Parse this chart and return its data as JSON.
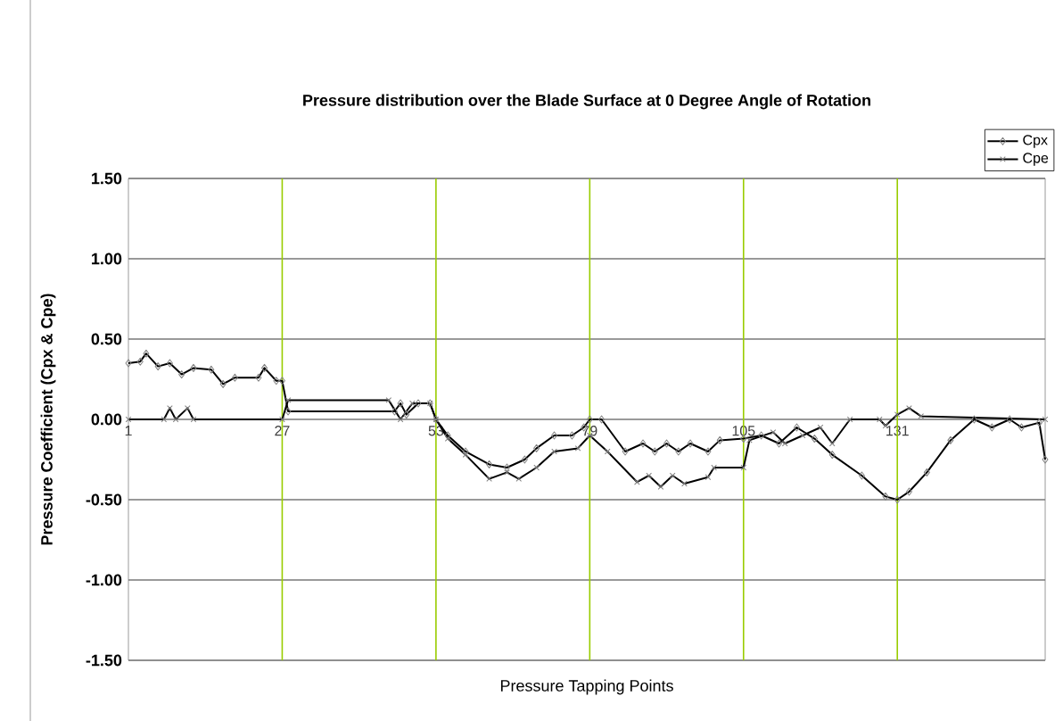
{
  "chart_data": {
    "type": "line",
    "title": "Pressure distribution over the Blade Surface at 0 Degree Angle of Rotation",
    "xlabel": "Pressure Tapping Points",
    "ylabel": "Pressure Coefficient (Cpx & Cpe)",
    "xlim": [
      1,
      156
    ],
    "xticks": [
      1,
      27,
      53,
      79,
      105,
      131
    ],
    "ylim": [
      -1.5,
      1.5
    ],
    "yticks": [
      {
        "value": -1.5,
        "label": "-1.50"
      },
      {
        "value": -1.0,
        "label": "-1.00"
      },
      {
        "value": -0.5,
        "label": "-0.50"
      },
      {
        "value": 0,
        "label": "0.00"
      },
      {
        "value": 0.5,
        "label": "0.50"
      },
      {
        "value": 1.0,
        "label": "1.00"
      },
      {
        "value": 1.5,
        "label": "1.50"
      }
    ],
    "grid": "y",
    "legend": "top right",
    "line_style": "solid",
    "ref_lines": [
      {
        "axis": "x",
        "value": 27,
        "color": "#99cc00"
      },
      {
        "axis": "x",
        "value": 53,
        "color": "#99cc00"
      },
      {
        "axis": "x",
        "value": 79,
        "color": "#99cc00"
      },
      {
        "axis": "x",
        "value": 105,
        "color": "#99cc00"
      },
      {
        "axis": "x",
        "value": 131,
        "color": "#99cc00"
      }
    ],
    "series": [
      {
        "name": "Cpx",
        "color": "#000000",
        "marker": "diamond",
        "x": [
          1,
          3,
          4,
          6,
          8,
          10,
          12,
          15,
          17,
          19,
          23,
          24,
          26,
          27,
          28,
          46,
          47,
          48,
          50,
          52,
          53,
          55,
          58,
          62,
          65,
          68,
          70,
          73,
          76,
          78,
          79,
          81,
          85,
          88,
          90,
          92,
          94,
          96,
          99,
          101,
          105,
          108,
          111,
          114,
          117,
          120,
          125,
          129,
          131,
          133,
          136,
          140,
          144,
          147,
          150,
          152,
          155,
          156
        ],
        "values": [
          0.35,
          0.36,
          0.41,
          0.33,
          0.35,
          0.28,
          0.32,
          0.31,
          0.22,
          0.26,
          0.26,
          0.32,
          0.24,
          0.24,
          0.05,
          0.05,
          0.1,
          0.03,
          0.1,
          0.1,
          0.0,
          -0.1,
          -0.2,
          -0.28,
          -0.3,
          -0.25,
          -0.18,
          -0.1,
          -0.1,
          -0.05,
          0.0,
          0.0,
          -0.2,
          -0.15,
          -0.2,
          -0.15,
          -0.2,
          -0.15,
          -0.2,
          -0.13,
          -0.12,
          -0.1,
          -0.15,
          -0.05,
          -0.12,
          -0.22,
          -0.35,
          -0.48,
          -0.5,
          -0.45,
          -0.33,
          -0.13,
          0.0,
          -0.05,
          0.0,
          -0.05,
          -0.02,
          -0.25
        ]
      },
      {
        "name": "Cpe",
        "color": "#000000",
        "marker": "cross",
        "x": [
          1,
          7,
          8,
          9,
          11,
          12,
          27,
          28,
          45,
          47,
          49,
          52,
          53,
          55,
          58,
          62,
          65,
          67,
          70,
          73,
          77,
          79,
          82,
          87,
          89,
          91,
          93,
          95,
          99,
          100,
          105,
          106,
          110,
          112,
          115,
          118,
          120,
          123,
          128,
          129,
          131,
          133,
          135,
          156
        ],
        "values": [
          0,
          0,
          0.07,
          0,
          0.07,
          0,
          0,
          0.12,
          0.12,
          0.0,
          0.1,
          0.1,
          0.0,
          -0.12,
          -0.22,
          -0.37,
          -0.33,
          -0.37,
          -0.3,
          -0.2,
          -0.18,
          -0.1,
          -0.2,
          -0.39,
          -0.35,
          -0.42,
          -0.35,
          -0.4,
          -0.36,
          -0.3,
          -0.3,
          -0.13,
          -0.08,
          -0.15,
          -0.1,
          -0.05,
          -0.15,
          0.0,
          0.0,
          -0.04,
          0.03,
          0.07,
          0.02,
          0.0
        ]
      }
    ]
  }
}
